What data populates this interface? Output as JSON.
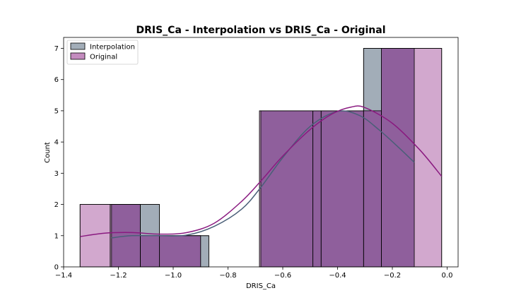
{
  "chart_data": {
    "type": "histogram",
    "title": "DRIS_Ca - Interpolation vs DRIS_Ca - Original",
    "xlabel": "DRIS_Ca",
    "ylabel": "Count",
    "xlim": [
      -1.4,
      0.04
    ],
    "ylim": [
      0,
      7.35
    ],
    "xticks": [
      -1.4,
      -1.2,
      -1.0,
      -0.8,
      -0.6,
      -0.4,
      -0.2,
      0.0
    ],
    "xtick_labels": [
      "−1.4",
      "−1.2",
      "−1.0",
      "−0.8",
      "−0.6",
      "−0.4",
      "−0.2",
      "0.0"
    ],
    "yticks": [
      0,
      1,
      2,
      3,
      4,
      5,
      6,
      7
    ],
    "ytick_labels": [
      "0",
      "1",
      "2",
      "3",
      "4",
      "5",
      "6",
      "7"
    ],
    "grid": false,
    "legend": "upper-left",
    "series": [
      {
        "name": "Interpolation",
        "color": "#5a7085",
        "bins": [
          {
            "x0": -1.225,
            "x1": -1.12,
            "count": 2
          },
          {
            "x0": -1.12,
            "x1": -1.05,
            "count": 2
          },
          {
            "x0": -1.05,
            "x1": -0.87,
            "count": 1
          },
          {
            "x0": -0.87,
            "x1": -0.68,
            "count": 0
          },
          {
            "x0": -0.68,
            "x1": -0.49,
            "count": 5
          },
          {
            "x0": -0.49,
            "x1": -0.305,
            "count": 5
          },
          {
            "x0": -0.305,
            "x1": -0.12,
            "count": 7
          }
        ],
        "kde_x": [
          -1.225,
          -1.15,
          -1.05,
          -0.95,
          -0.85,
          -0.75,
          -0.68,
          -0.6,
          -0.5,
          -0.4,
          -0.32,
          -0.25,
          -0.18,
          -0.12
        ],
        "kde_y": [
          0.93,
          1.0,
          1.0,
          1.02,
          1.3,
          1.85,
          2.55,
          3.5,
          4.5,
          4.98,
          4.85,
          4.4,
          3.85,
          3.35
        ]
      },
      {
        "name": "Original",
        "color": "#a64d9f",
        "bins": [
          {
            "x0": -1.34,
            "x1": -1.23,
            "count": 2
          },
          {
            "x0": -1.23,
            "x1": -1.12,
            "count": 2
          },
          {
            "x0": -1.12,
            "x1": -0.9,
            "count": 1
          },
          {
            "x0": -0.9,
            "x1": -0.685,
            "count": 0
          },
          {
            "x0": -0.685,
            "x1": -0.46,
            "count": 5
          },
          {
            "x0": -0.46,
            "x1": -0.24,
            "count": 5
          },
          {
            "x0": -0.24,
            "x1": -0.02,
            "count": 7
          }
        ],
        "kde_x": [
          -1.34,
          -1.25,
          -1.15,
          -1.05,
          -0.95,
          -0.85,
          -0.75,
          -0.68,
          -0.6,
          -0.5,
          -0.42,
          -0.35,
          -0.3,
          -0.2,
          -0.1,
          -0.02
        ],
        "kde_y": [
          0.97,
          1.08,
          1.1,
          1.05,
          1.1,
          1.4,
          2.1,
          2.75,
          3.55,
          4.4,
          4.9,
          5.12,
          5.1,
          4.6,
          3.75,
          2.9
        ]
      }
    ],
    "overlap_color": "#8f5f9c",
    "interp_fill_color": "#a2adb8",
    "orig_fill_color": "#c38bbe",
    "interp_line_color": "#4a5f78",
    "orig_line_color": "#8a1a80"
  }
}
